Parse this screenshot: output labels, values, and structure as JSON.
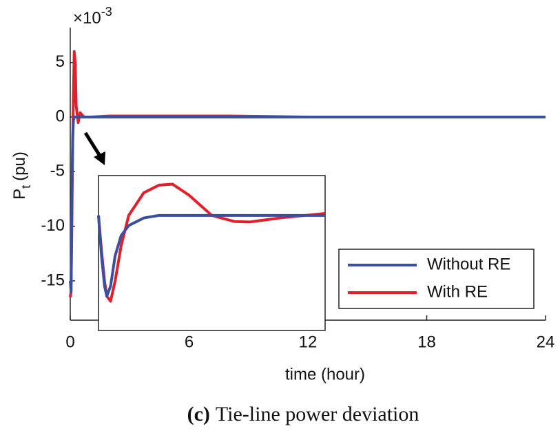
{
  "chart_data": {
    "type": "line",
    "caption_label": "(c)",
    "caption": "Tie-line power deviation",
    "xlabel": "time (hour)",
    "ylabel": "P",
    "ylabel_subscript": "t",
    "ylabel_unit": "(pu)",
    "y_scale_label": "×10",
    "y_scale_exponent": "-3",
    "xlim": [
      0,
      24
    ],
    "ylim": [
      -18.6,
      8.2
    ],
    "xticks": [
      0,
      6,
      12,
      18,
      24
    ],
    "yticks": [
      -15,
      -10,
      -5,
      0,
      5
    ],
    "legend": "lower right",
    "x": [
      0,
      0.04,
      0.08,
      0.12,
      0.16,
      0.2,
      0.25,
      0.3,
      0.4,
      0.5,
      0.7,
      1,
      2,
      4,
      6,
      8,
      12,
      18,
      24
    ],
    "series": [
      {
        "name": "Without RE",
        "color": "#3a4fa0",
        "values": [
          -15,
          -16,
          -8,
          -2,
          -0.3,
          0,
          0,
          0,
          0,
          0,
          0,
          0,
          0,
          0,
          0,
          0,
          0,
          0,
          0
        ]
      },
      {
        "name": "With RE",
        "color": "#e0202a",
        "values": [
          -16.5,
          -16,
          -10,
          -3,
          2,
          6,
          5,
          1,
          -0.5,
          0.4,
          0,
          0,
          0.1,
          0.1,
          0.1,
          0.1,
          0,
          0,
          0
        ]
      }
    ],
    "inset": {
      "xlim": [
        0,
        1.5
      ],
      "ylim": [
        -22.8,
        7.9
      ],
      "x": [
        0,
        0.02,
        0.04,
        0.055,
        0.08,
        0.11,
        0.15,
        0.2,
        0.3,
        0.4,
        0.49,
        0.6,
        0.75,
        0.9,
        1.0,
        1.2,
        1.5
      ],
      "series": [
        {
          "values": [
            0,
            -8,
            -14,
            -16,
            -14,
            -8,
            -4,
            -2,
            -0.5,
            0,
            0,
            0,
            0,
            0,
            0,
            0,
            0
          ]
        },
        {
          "values": [
            0,
            -7,
            -13,
            -16,
            -17,
            -13,
            -6,
            0,
            4.5,
            6,
            6.2,
            4,
            0,
            -1.2,
            -1.3,
            -0.5,
            0.4
          ]
        }
      ]
    }
  }
}
